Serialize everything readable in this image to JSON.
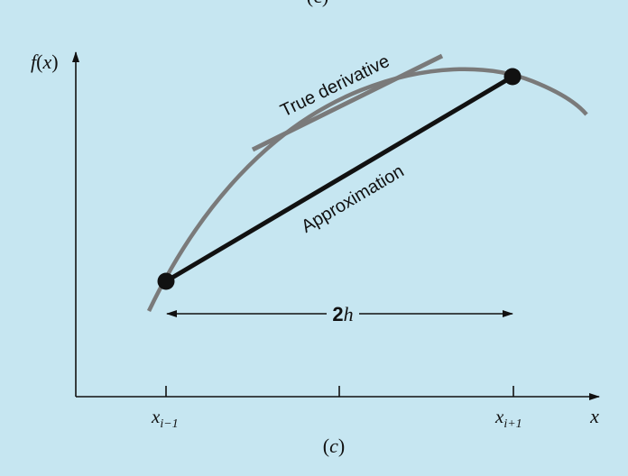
{
  "figure": {
    "top_fragment": "(c)",
    "caption_open": "(",
    "caption_letter": "c",
    "caption_close": ")"
  },
  "axes": {
    "y_label_f": "f",
    "y_label_open": "(",
    "y_label_x": "x",
    "y_label_close": ")",
    "x_label": "x"
  },
  "ticks": {
    "left_base": "x",
    "left_sub": "i−1",
    "right_base": "x",
    "right_sub": "i+1"
  },
  "annotations": {
    "true_derivative": "True derivative",
    "approximation": "Approximation",
    "interval_num": "2",
    "interval_var": "h"
  },
  "colors": {
    "background": "#c6e6f1",
    "curve": "#7a7a7a",
    "tangent": "#7a7a7a",
    "chord": "#111111",
    "axis": "#111111"
  }
}
